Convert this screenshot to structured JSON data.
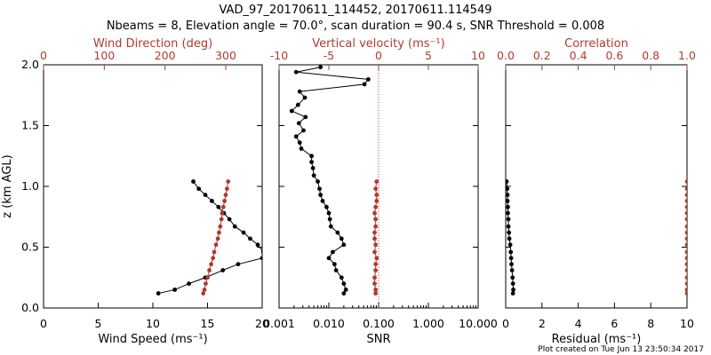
{
  "header": {
    "title_line1": "VAD_97_20170611_114452, 20170611.114549",
    "title_line2": "Nbeams = 8, Elevation angle = 70.0°, scan duration = 90.4 s, SNR Threshold = 0.008"
  },
  "footer": {
    "text": "Plot created on Tue Jun 13 23:50:34 2017"
  },
  "colors": {
    "black": "#000000",
    "red": "#b03a2e"
  },
  "chart_data": [
    {
      "type": "line",
      "panel": "wind",
      "ylabel": "z (km AGL)",
      "ylim": [
        0,
        2
      ],
      "yticks": [
        "0.0",
        "0.5",
        "1.0",
        "1.5",
        "2.0"
      ],
      "bottom_axis": {
        "label": "Wind Speed (ms⁻¹)",
        "range": [
          0,
          20
        ],
        "ticks": [
          "0",
          "5",
          "10",
          "15",
          "20"
        ]
      },
      "top_axis": {
        "label": "Wind Direction (deg)",
        "range": [
          0,
          360
        ],
        "ticks": [
          "0",
          "100",
          "200",
          "300"
        ],
        "color": "#b03a2e"
      },
      "series": [
        {
          "axis": "bottom",
          "color": "#000000",
          "z": [
            1.04,
            0.98,
            0.93,
            0.88,
            0.83,
            0.78,
            0.73,
            0.67,
            0.62,
            0.57,
            0.52,
            0.46,
            0.41,
            0.36,
            0.31,
            0.25,
            0.2,
            0.15,
            0.12
          ],
          "x": [
            13.7,
            14.2,
            14.8,
            15.4,
            16.0,
            16.5,
            17.0,
            17.5,
            18.3,
            18.9,
            19.6,
            20.1,
            20.0,
            17.8,
            16.4,
            14.8,
            13.3,
            12.0,
            10.5
          ]
        },
        {
          "axis": "top",
          "color": "#b03a2e",
          "z": [
            1.04,
            0.98,
            0.93,
            0.88,
            0.83,
            0.78,
            0.73,
            0.67,
            0.62,
            0.57,
            0.52,
            0.46,
            0.41,
            0.36,
            0.31,
            0.25,
            0.2,
            0.15,
            0.12
          ],
          "x": [
            304,
            302,
            300,
            298,
            296,
            294,
            293,
            291,
            289,
            287,
            284,
            281,
            279,
            276,
            273,
            270,
            267,
            265,
            263
          ]
        }
      ]
    },
    {
      "type": "line",
      "panel": "snr",
      "ylim": [
        0,
        2
      ],
      "bottom_axis": {
        "label": "SNR",
        "scale": "log",
        "range": [
          0.001,
          10
        ],
        "ticks": [
          "0.001",
          "0.010",
          "0.100",
          "1.000",
          "10.000"
        ]
      },
      "top_axis": {
        "label": "Vertical velocity (ms⁻¹)",
        "range": [
          -10,
          10
        ],
        "ticks": [
          "-10",
          "-5",
          "0",
          "5",
          "10"
        ],
        "color": "#b03a2e"
      },
      "reference_line": {
        "axis": "top",
        "x": 0,
        "style": "dotted",
        "color": "#b03a2e"
      },
      "series": [
        {
          "axis": "bottom",
          "color": "#000000",
          "z": [
            1.98,
            1.94,
            1.88,
            1.84,
            1.78,
            1.73,
            1.67,
            1.62,
            1.57,
            1.52,
            1.46,
            1.41,
            1.36,
            1.31,
            1.25,
            1.2,
            1.15,
            1.09,
            1.04,
            0.98,
            0.93,
            0.88,
            0.83,
            0.78,
            0.73,
            0.67,
            0.62,
            0.57,
            0.52,
            0.46,
            0.41,
            0.36,
            0.31,
            0.25,
            0.2,
            0.15,
            0.12
          ],
          "x": [
            0.0068,
            0.0022,
            0.062,
            0.052,
            0.0026,
            0.0033,
            0.0024,
            0.0018,
            0.0034,
            0.0025,
            0.0031,
            0.0022,
            0.0026,
            0.0028,
            0.0045,
            0.0045,
            0.0048,
            0.005,
            0.006,
            0.0065,
            0.0068,
            0.0075,
            0.009,
            0.01,
            0.0105,
            0.011,
            0.015,
            0.018,
            0.02,
            0.012,
            0.01,
            0.013,
            0.014,
            0.018,
            0.02,
            0.022,
            0.02
          ]
        },
        {
          "axis": "top",
          "color": "#b03a2e",
          "z": [
            1.04,
            0.98,
            0.93,
            0.88,
            0.83,
            0.78,
            0.73,
            0.67,
            0.62,
            0.57,
            0.52,
            0.46,
            0.41,
            0.36,
            0.31,
            0.25,
            0.2,
            0.15,
            0.12
          ],
          "x": [
            -0.2,
            -0.3,
            -0.2,
            -0.2,
            -0.3,
            -0.4,
            -0.3,
            -0.3,
            -0.4,
            -0.4,
            -0.3,
            -0.4,
            -0.2,
            -0.3,
            -0.3,
            -0.4,
            -0.4,
            -0.3,
            -0.3
          ]
        }
      ]
    },
    {
      "type": "line",
      "panel": "residual",
      "ylim": [
        0,
        2
      ],
      "bottom_axis": {
        "label": "Residual (ms⁻¹)",
        "range": [
          0,
          10
        ],
        "ticks": [
          "0",
          "2",
          "4",
          "6",
          "8",
          "10"
        ]
      },
      "top_axis": {
        "label": "Correlation",
        "range": [
          0,
          1
        ],
        "ticks": [
          "0.0",
          "0.2",
          "0.4",
          "0.6",
          "0.8",
          "1.0"
        ],
        "color": "#b03a2e"
      },
      "series": [
        {
          "axis": "bottom",
          "color": "#000000",
          "z": [
            1.04,
            0.98,
            0.93,
            0.88,
            0.83,
            0.78,
            0.73,
            0.67,
            0.62,
            0.57,
            0.52,
            0.46,
            0.41,
            0.36,
            0.31,
            0.25,
            0.2,
            0.15,
            0.12
          ],
          "x": [
            0.05,
            0.08,
            0.1,
            0.1,
            0.12,
            0.12,
            0.15,
            0.15,
            0.18,
            0.2,
            0.25,
            0.28,
            0.3,
            0.32,
            0.35,
            0.38,
            0.4,
            0.42,
            0.4
          ]
        },
        {
          "axis": "top",
          "color": "#b03a2e",
          "z": [
            1.04,
            0.98,
            0.93,
            0.88,
            0.83,
            0.78,
            0.73,
            0.67,
            0.62,
            0.57,
            0.52,
            0.46,
            0.41,
            0.36,
            0.31,
            0.25,
            0.2,
            0.15,
            0.12
          ],
          "x": [
            1,
            1,
            1,
            1,
            1,
            1,
            1,
            1,
            1,
            1,
            1,
            1,
            1,
            1,
            1,
            1,
            1,
            1,
            1
          ]
        }
      ]
    }
  ]
}
